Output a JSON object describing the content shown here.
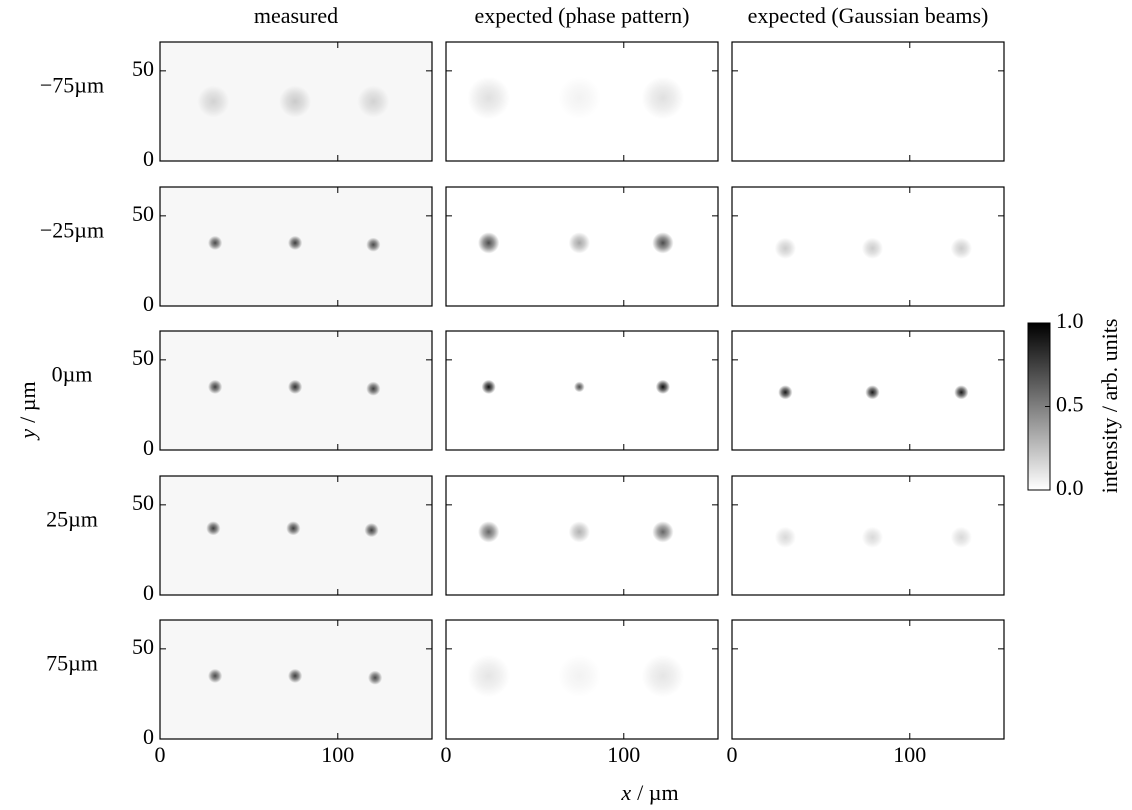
{
  "chart_data": {
    "type": "image-grid",
    "columns": [
      "measured",
      "expected (phase pattern)",
      "expected (Gaussian beams)"
    ],
    "rows": [
      "−75µm",
      "−25µm",
      "0µm",
      "25µm",
      "75µm"
    ],
    "xlabel": "x",
    "xunit": "/ µm",
    "ylabel": "y",
    "yunit": "/ µm",
    "xlim": [
      0,
      153
    ],
    "xticks": [
      0,
      100
    ],
    "ylim": [
      0,
      66
    ],
    "yticks": [
      0,
      50
    ],
    "clim": [
      0,
      1
    ],
    "cticks": [
      {
        "value": 0,
        "label": "0.0"
      },
      {
        "value": 0.5,
        "label": "0.5"
      },
      {
        "value": 1,
        "label": "1.0"
      }
    ],
    "clabel": "intensity / arb. units",
    "measured_background": 0.03,
    "spots": [
      [
        [
          {
            "x": 30,
            "y": 33,
            "intensity": 0.15,
            "width": 9
          },
          {
            "x": 76,
            "y": 33,
            "intensity": 0.18,
            "width": 9
          },
          {
            "x": 120,
            "y": 33,
            "intensity": 0.15,
            "width": 9
          }
        ],
        [
          {
            "x": 24,
            "y": 35,
            "intensity": 0.12,
            "width": 12
          },
          {
            "x": 75,
            "y": 35,
            "intensity": 0.05,
            "width": 12
          },
          {
            "x": 122,
            "y": 35,
            "intensity": 0.12,
            "width": 12
          }
        ],
        []
      ],
      [
        [
          {
            "x": 31,
            "y": 35,
            "intensity": 0.7,
            "width": 4
          },
          {
            "x": 76,
            "y": 35,
            "intensity": 0.75,
            "width": 4
          },
          {
            "x": 120,
            "y": 34,
            "intensity": 0.7,
            "width": 4
          }
        ],
        [
          {
            "x": 24,
            "y": 35,
            "intensity": 0.7,
            "width": 6
          },
          {
            "x": 75,
            "y": 35,
            "intensity": 0.35,
            "width": 6
          },
          {
            "x": 122,
            "y": 35,
            "intensity": 0.7,
            "width": 6
          }
        ],
        [
          {
            "x": 30,
            "y": 32,
            "intensity": 0.2,
            "width": 6
          },
          {
            "x": 79,
            "y": 32,
            "intensity": 0.2,
            "width": 6
          },
          {
            "x": 129,
            "y": 32,
            "intensity": 0.2,
            "width": 6
          }
        ]
      ],
      [
        [
          {
            "x": 31,
            "y": 35,
            "intensity": 0.75,
            "width": 4
          },
          {
            "x": 76,
            "y": 35,
            "intensity": 0.8,
            "width": 4
          },
          {
            "x": 120,
            "y": 34,
            "intensity": 0.75,
            "width": 4
          }
        ],
        [
          {
            "x": 24,
            "y": 35,
            "intensity": 0.95,
            "width": 4
          },
          {
            "x": 75,
            "y": 35,
            "intensity": 0.7,
            "width": 3
          },
          {
            "x": 122,
            "y": 35,
            "intensity": 0.95,
            "width": 4
          }
        ],
        [
          {
            "x": 30,
            "y": 32,
            "intensity": 0.9,
            "width": 4
          },
          {
            "x": 79,
            "y": 32,
            "intensity": 0.9,
            "width": 4
          },
          {
            "x": 129,
            "y": 32,
            "intensity": 0.9,
            "width": 4
          }
        ]
      ],
      [
        [
          {
            "x": 30,
            "y": 37,
            "intensity": 0.75,
            "width": 4
          },
          {
            "x": 75,
            "y": 37,
            "intensity": 0.75,
            "width": 4
          },
          {
            "x": 119,
            "y": 36,
            "intensity": 0.75,
            "width": 4
          }
        ],
        [
          {
            "x": 24,
            "y": 35,
            "intensity": 0.6,
            "width": 6
          },
          {
            "x": 75,
            "y": 35,
            "intensity": 0.3,
            "width": 6
          },
          {
            "x": 122,
            "y": 35,
            "intensity": 0.6,
            "width": 6
          }
        ],
        [
          {
            "x": 30,
            "y": 32,
            "intensity": 0.15,
            "width": 6
          },
          {
            "x": 79,
            "y": 32,
            "intensity": 0.15,
            "width": 6
          },
          {
            "x": 129,
            "y": 32,
            "intensity": 0.15,
            "width": 6
          }
        ]
      ],
      [
        [
          {
            "x": 31,
            "y": 35,
            "intensity": 0.7,
            "width": 4
          },
          {
            "x": 76,
            "y": 35,
            "intensity": 0.75,
            "width": 4
          },
          {
            "x": 121,
            "y": 34,
            "intensity": 0.7,
            "width": 4
          }
        ],
        [
          {
            "x": 24,
            "y": 35,
            "intensity": 0.1,
            "width": 12
          },
          {
            "x": 75,
            "y": 35,
            "intensity": 0.05,
            "width": 12
          },
          {
            "x": 122,
            "y": 35,
            "intensity": 0.1,
            "width": 12
          }
        ],
        []
      ]
    ]
  }
}
